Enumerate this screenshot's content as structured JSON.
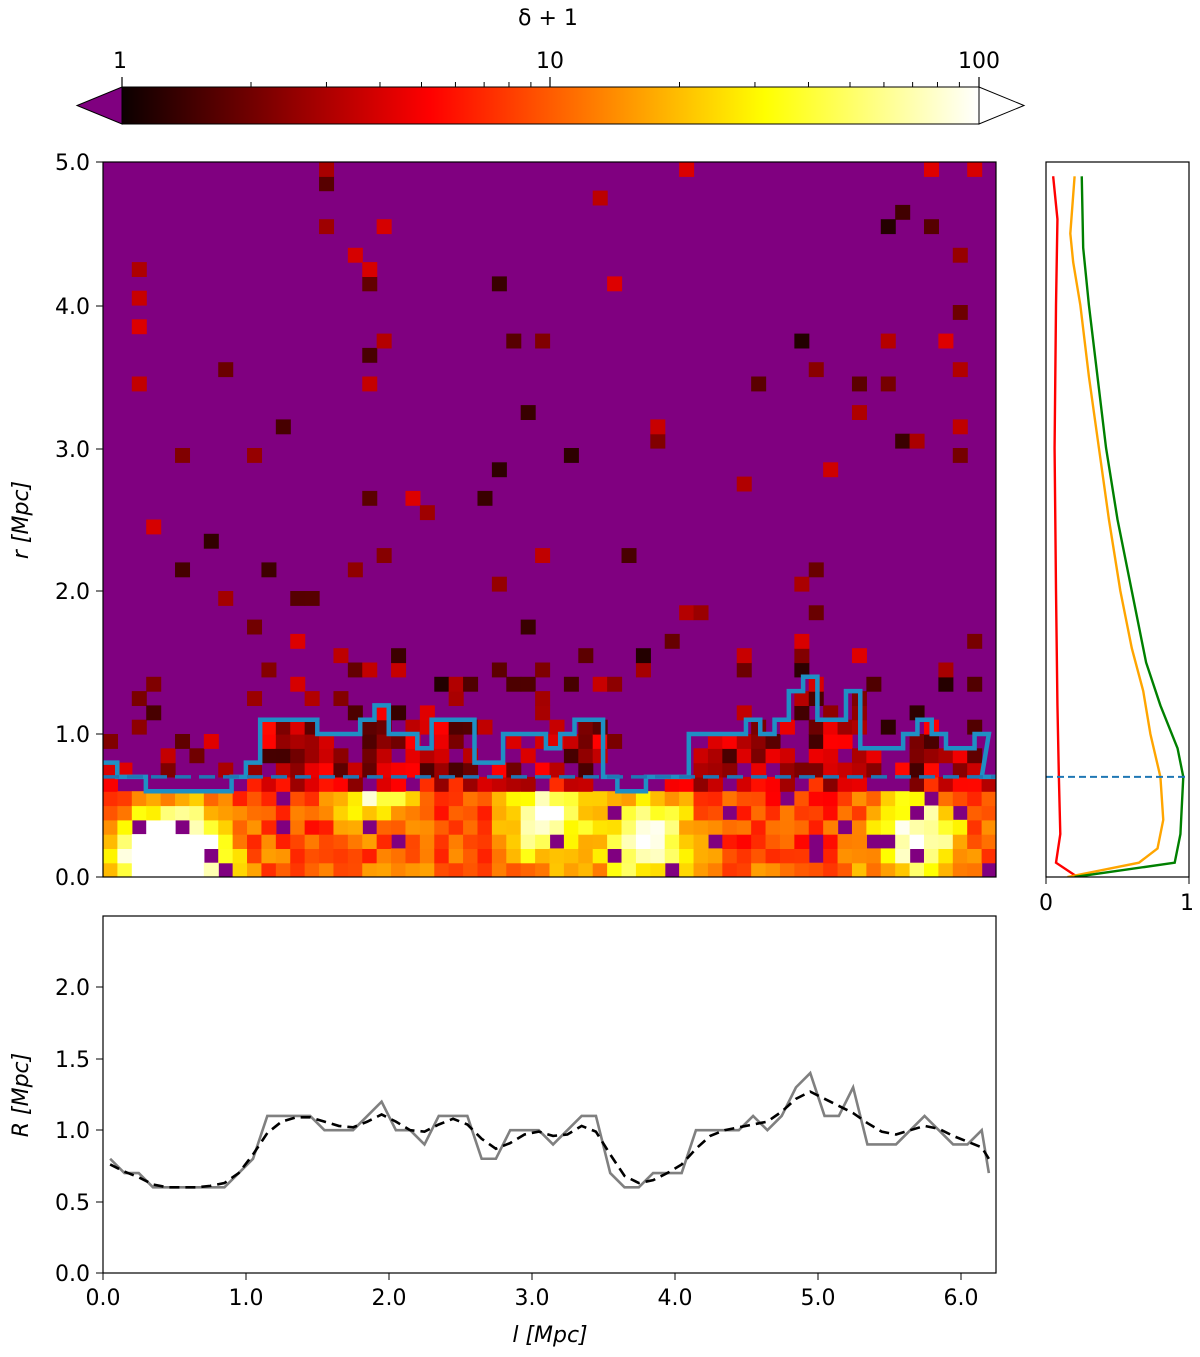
{
  "chart_data": [
    {
      "type": "heatmap",
      "colorbar": {
        "label": "δ + 1",
        "scale": "log",
        "ticks": [
          "1",
          "10",
          "100"
        ],
        "range": [
          1,
          100
        ],
        "under_color": "#800080",
        "over_color": "#ffffff",
        "colormap": "hot"
      },
      "xlim": [
        0.0,
        6.25
      ],
      "ylim": [
        0.0,
        5.0
      ],
      "ylabel": "r [Mpc]",
      "yticks": [
        "0.0",
        "1.0",
        "2.0",
        "3.0",
        "4.0",
        "5.0"
      ],
      "background_color": "#800080",
      "grid": "off",
      "overlays": {
        "boundary_color": "#1f8fc4",
        "dashed_level": 0.7,
        "dashed_color": "#1f77b4"
      },
      "notes": "cell-level density values are estimated from the color map"
    },
    {
      "type": "line",
      "xlim": [
        0,
        1
      ],
      "ylim": [
        0.0,
        5.0
      ],
      "xticks": [
        "0",
        "1"
      ],
      "dashed_level": 0.7,
      "series": [
        {
          "color": "#ff0000",
          "r": [
            0.0,
            0.1,
            0.3,
            0.7,
            1.2,
            2.0,
            3.0,
            4.0,
            4.6,
            4.9
          ],
          "x": [
            0.22,
            0.07,
            0.1,
            0.09,
            0.08,
            0.07,
            0.06,
            0.07,
            0.08,
            0.05
          ]
        },
        {
          "color": "#ffa500",
          "r": [
            0.0,
            0.1,
            0.2,
            0.4,
            0.7,
            1.0,
            1.3,
            1.6,
            2.0,
            2.5,
            3.0,
            3.5,
            4.0,
            4.3,
            4.5,
            4.9
          ],
          "x": [
            0.15,
            0.65,
            0.78,
            0.82,
            0.8,
            0.73,
            0.68,
            0.6,
            0.52,
            0.44,
            0.37,
            0.3,
            0.24,
            0.19,
            0.17,
            0.2
          ]
        },
        {
          "color": "#008000",
          "r": [
            0.0,
            0.1,
            0.3,
            0.7,
            0.9,
            1.2,
            1.5,
            2.0,
            2.5,
            3.0,
            3.5,
            4.0,
            4.4,
            4.9
          ],
          "x": [
            0.2,
            0.9,
            0.94,
            0.96,
            0.92,
            0.8,
            0.7,
            0.6,
            0.5,
            0.42,
            0.36,
            0.3,
            0.26,
            0.25
          ]
        }
      ]
    },
    {
      "type": "line",
      "xlabel": "l [Mpc]",
      "ylabel": "R [Mpc]",
      "xlim": [
        0.0,
        6.25
      ],
      "ylim": [
        0.0,
        2.5
      ],
      "xticks": [
        "0.0",
        "1.0",
        "2.0",
        "3.0",
        "4.0",
        "5.0",
        "6.0"
      ],
      "yticks": [
        "0.0",
        "0.5",
        "1.0",
        "1.5",
        "2.0"
      ],
      "series": [
        {
          "style": "solid",
          "color": "#808080",
          "x": [
            0.05,
            0.15,
            0.25,
            0.35,
            0.45,
            0.55,
            0.65,
            0.75,
            0.85,
            0.95,
            1.05,
            1.15,
            1.25,
            1.35,
            1.45,
            1.55,
            1.65,
            1.75,
            1.85,
            1.95,
            2.05,
            2.15,
            2.25,
            2.35,
            2.45,
            2.55,
            2.65,
            2.75,
            2.85,
            2.95,
            3.05,
            3.15,
            3.25,
            3.35,
            3.45,
            3.55,
            3.65,
            3.75,
            3.85,
            3.95,
            4.05,
            4.15,
            4.25,
            4.35,
            4.45,
            4.55,
            4.65,
            4.75,
            4.85,
            4.95,
            5.05,
            5.15,
            5.25,
            5.35,
            5.45,
            5.55,
            5.65,
            5.75,
            5.85,
            5.95,
            6.05,
            6.15,
            6.2
          ],
          "y": [
            0.8,
            0.7,
            0.7,
            0.6,
            0.6,
            0.6,
            0.6,
            0.6,
            0.6,
            0.7,
            0.8,
            1.1,
            1.1,
            1.1,
            1.1,
            1.0,
            1.0,
            1.0,
            1.1,
            1.2,
            1.0,
            1.0,
            0.9,
            1.1,
            1.1,
            1.1,
            0.8,
            0.8,
            1.0,
            1.0,
            1.0,
            0.9,
            1.0,
            1.1,
            1.1,
            0.7,
            0.6,
            0.6,
            0.7,
            0.7,
            0.7,
            1.0,
            1.0,
            1.0,
            1.0,
            1.1,
            1.0,
            1.1,
            1.3,
            1.4,
            1.1,
            1.1,
            1.3,
            0.9,
            0.9,
            0.9,
            1.0,
            1.1,
            1.0,
            0.9,
            0.9,
            1.0,
            0.7
          ]
        },
        {
          "style": "dashed",
          "color": "#000000",
          "x": [
            0.05,
            0.15,
            0.25,
            0.35,
            0.45,
            0.55,
            0.65,
            0.75,
            0.85,
            0.95,
            1.05,
            1.15,
            1.25,
            1.35,
            1.45,
            1.55,
            1.65,
            1.75,
            1.85,
            1.95,
            2.05,
            2.15,
            2.25,
            2.35,
            2.45,
            2.55,
            2.65,
            2.75,
            2.85,
            2.95,
            3.05,
            3.15,
            3.25,
            3.35,
            3.45,
            3.55,
            3.65,
            3.75,
            3.85,
            3.95,
            4.05,
            4.15,
            4.25,
            4.35,
            4.45,
            4.55,
            4.65,
            4.75,
            4.85,
            4.95,
            5.05,
            5.15,
            5.25,
            5.35,
            5.45,
            5.55,
            5.65,
            5.75,
            5.85,
            5.95,
            6.05,
            6.15,
            6.2
          ],
          "y": [
            0.76,
            0.71,
            0.67,
            0.62,
            0.6,
            0.6,
            0.6,
            0.61,
            0.63,
            0.7,
            0.83,
            0.98,
            1.06,
            1.09,
            1.09,
            1.06,
            1.03,
            1.02,
            1.06,
            1.11,
            1.06,
            1.0,
            0.99,
            1.04,
            1.08,
            1.04,
            0.94,
            0.87,
            0.91,
            0.97,
            0.99,
            0.96,
            0.97,
            1.03,
            0.99,
            0.83,
            0.68,
            0.63,
            0.65,
            0.7,
            0.76,
            0.87,
            0.96,
            1.0,
            1.02,
            1.04,
            1.06,
            1.13,
            1.22,
            1.27,
            1.22,
            1.17,
            1.12,
            1.05,
            0.99,
            0.97,
            1.0,
            1.03,
            1.01,
            0.96,
            0.92,
            0.88,
            0.8
          ]
        }
      ]
    }
  ]
}
